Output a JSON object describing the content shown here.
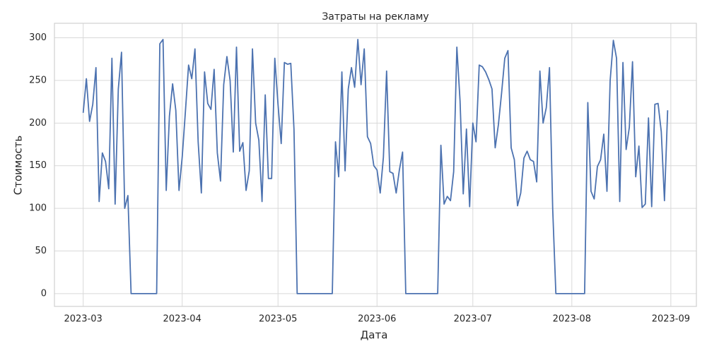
{
  "chart_data": {
    "type": "line",
    "title": "Затраты на рекламу",
    "x_label": "Дата",
    "y_label": "Стоимость",
    "color": "#4c72b0",
    "grid": true,
    "values": [
      212,
      252,
      202,
      222,
      265,
      108,
      165,
      155,
      123,
      276,
      105,
      240,
      283,
      100,
      115,
      0,
      0,
      0,
      0,
      0,
      0,
      0,
      0,
      0,
      293,
      298,
      121,
      208,
      246,
      215,
      121,
      160,
      213,
      268,
      252,
      287,
      178,
      118,
      260,
      223,
      216,
      263,
      165,
      132,
      245,
      278,
      250,
      166,
      289,
      167,
      177,
      121,
      144,
      287,
      200,
      180,
      108,
      233,
      135,
      135,
      276,
      222,
      176,
      271,
      269,
      270,
      193,
      0,
      0,
      0,
      0,
      0,
      0,
      0,
      0,
      0,
      0,
      0,
      0,
      178,
      137,
      260,
      144,
      240,
      265,
      242,
      298,
      245,
      287,
      184,
      176,
      150,
      145,
      118,
      160,
      261,
      143,
      141,
      118,
      145,
      166,
      0,
      0,
      0,
      0,
      0,
      0,
      0,
      0,
      0,
      0,
      0,
      174,
      105,
      114,
      109,
      143,
      289,
      226,
      117,
      193,
      102,
      200,
      178,
      268,
      266,
      260,
      251,
      240,
      171,
      198,
      235,
      276,
      285,
      171,
      157,
      103,
      118,
      159,
      167,
      157,
      155,
      131,
      261,
      200,
      218,
      265,
      100,
      0,
      0,
      0,
      0,
      0,
      0,
      0,
      0,
      0,
      0,
      224,
      120,
      111,
      149,
      157,
      187,
      120,
      250,
      297,
      276,
      108,
      271,
      169,
      195,
      272,
      137,
      173,
      101,
      105,
      206,
      102,
      222,
      223,
      190,
      109,
      215
    ],
    "xlim": [
      -9,
      192
    ],
    "xticks": [
      {
        "value": 0,
        "label": "2023-03"
      },
      {
        "value": 31,
        "label": "2023-04"
      },
      {
        "value": 61,
        "label": "2023-05"
      },
      {
        "value": 92,
        "label": "2023-06"
      },
      {
        "value": 122,
        "label": "2023-07"
      },
      {
        "value": 153,
        "label": "2023-08"
      },
      {
        "value": 184,
        "label": "2023-09"
      }
    ],
    "ylim": [
      -15,
      317
    ],
    "yticks": [
      0,
      50,
      100,
      150,
      200,
      250,
      300
    ]
  }
}
